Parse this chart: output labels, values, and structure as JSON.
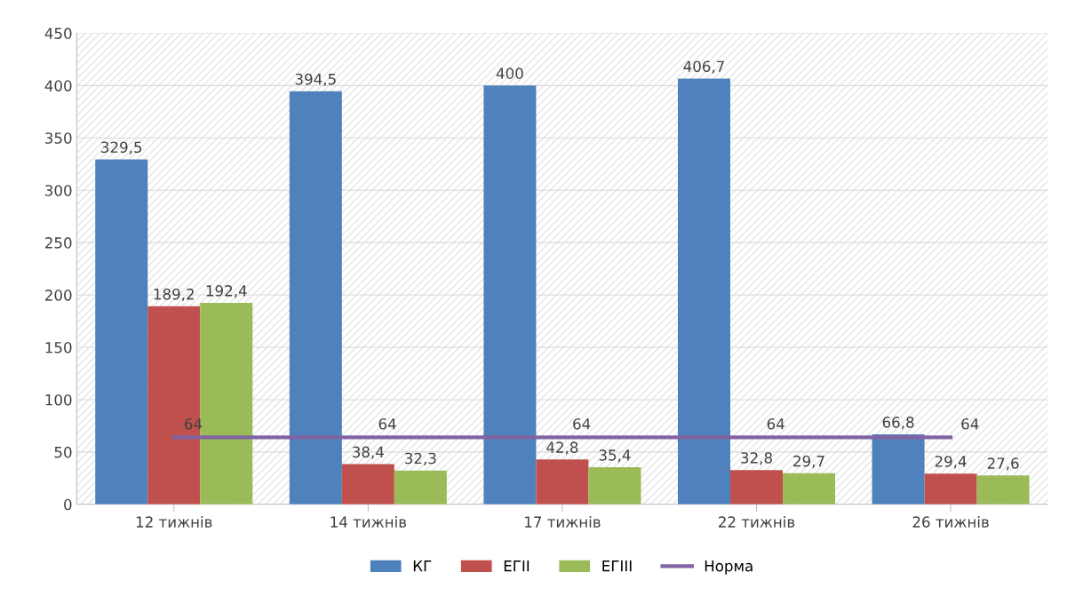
{
  "chart_data": {
    "type": "bar",
    "categories": [
      "12 тижнів",
      "14 тижнів",
      "17 тижнів",
      "22 тижнів",
      "26 тижнів"
    ],
    "series": [
      {
        "name": "КГ",
        "color": "#4f81bd",
        "values": [
          329.5,
          394.5,
          400,
          406.7,
          66.8
        ],
        "value_labels": [
          "329,5",
          "394,5",
          "400",
          "406,7",
          "66,8"
        ]
      },
      {
        "name": "ЕГІІ",
        "color": "#c0504d",
        "values": [
          189.2,
          38.4,
          42.8,
          32.8,
          29.4
        ],
        "value_labels": [
          "189,2",
          "38,4",
          "42,8",
          "32,8",
          "29,4"
        ]
      },
      {
        "name": "ЕГІІІ",
        "color": "#9bbb59",
        "values": [
          192.4,
          32.3,
          35.4,
          29.7,
          27.6
        ],
        "value_labels": [
          "192,4",
          "32,3",
          "35,4",
          "29,7",
          "27,6"
        ]
      },
      {
        "name": "Норма",
        "type": "line",
        "color": "#8064a2",
        "values": [
          64,
          64,
          64,
          64,
          64
        ],
        "value_labels": [
          "64",
          "64",
          "64",
          "64",
          "64"
        ]
      }
    ],
    "ylim": [
      0,
      450
    ],
    "yticks": [
      0,
      50,
      100,
      150,
      200,
      250,
      300,
      350,
      400,
      450
    ],
    "grid": "y",
    "legend": "bottom"
  }
}
